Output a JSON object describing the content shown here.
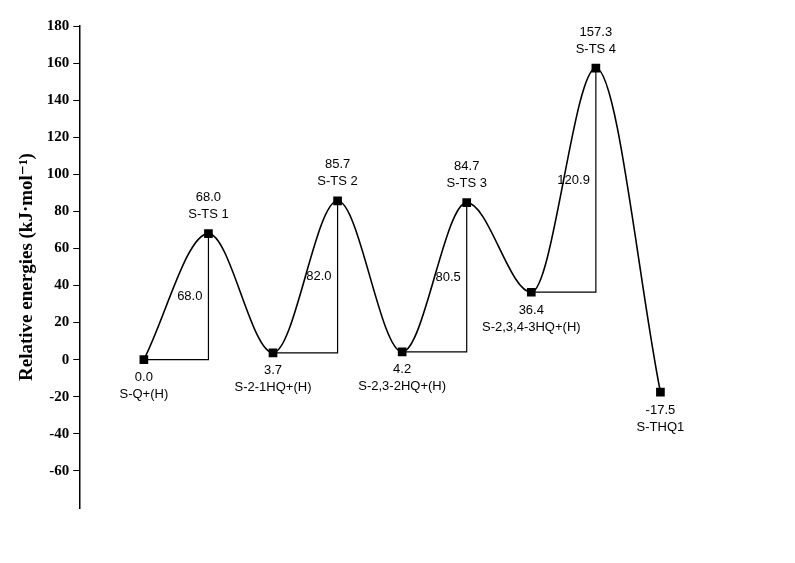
{
  "chart_data": {
    "type": "line",
    "y_label": "Relative energies (kJ·mol⁻¹)",
    "categories": [
      "S-Q+(H)",
      "S-TS 1",
      "S-2-1HQ+(H)",
      "S-TS 2",
      "S-2,3-2HQ+(H)",
      "S-TS 3",
      "S-2,3,4-3HQ+(H)",
      "S-TS 4",
      "S-THQ1"
    ],
    "values": [
      0,
      68,
      3.7,
      85.7,
      4.2,
      84.7,
      36.4,
      157.3,
      -17.5
    ],
    "value_labels": [
      "0.0",
      "68.0",
      "3.7",
      "85.7",
      "4.2",
      "84.7",
      "36.4",
      "157.3",
      "-17.5"
    ],
    "barriers": [
      {
        "value": 68,
        "label": "68.0"
      },
      {
        "value": 82,
        "label": "82.0"
      },
      {
        "value": 80.5,
        "label": "80.5"
      },
      {
        "value": 120.9,
        "label": "120.9"
      }
    ],
    "ylim": [
      -80,
      180
    ],
    "yticks": [
      -60,
      -40,
      -20,
      0,
      20,
      40,
      60,
      80,
      100,
      120,
      140,
      160,
      180
    ],
    "grid": false,
    "data_labels": true,
    "tick_labels": "y",
    "color": "#000000",
    "marker": "square"
  }
}
